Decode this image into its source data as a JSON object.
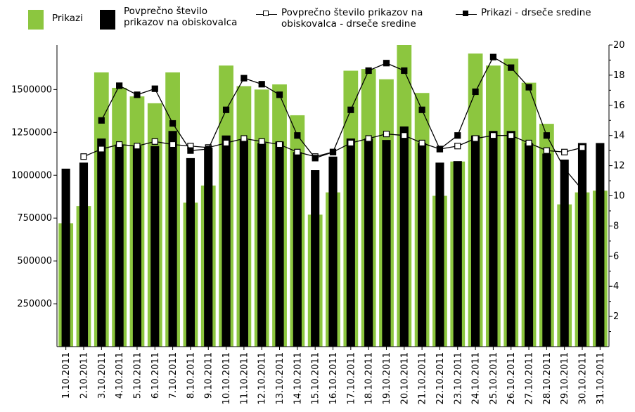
{
  "chart_data": {
    "type": "bar",
    "categories": [
      "1.10.2011",
      "2.10.2011",
      "3.10.2011",
      "4.10.2011",
      "5.10.2011",
      "6.10.2011",
      "7.10.2011",
      "8.10.2011",
      "9.10.2011",
      "10.10.2011",
      "11.10.2011",
      "12.10.2011",
      "13.10.2011",
      "14.10.2011",
      "15.10.2011",
      "16.10.2011",
      "17.10.2011",
      "18.10.2011",
      "19.10.2011",
      "20.10.2011",
      "21.10.2011",
      "22.10.2011",
      "23.10.2011",
      "24.10.2011",
      "25.10.2011",
      "26.10.2011",
      "27.10.2011",
      "28.10.2011",
      "29.10.2011",
      "30.10.2011",
      "31.10.2011"
    ],
    "series": [
      {
        "name": "Prikazi",
        "axis": "left",
        "kind": "bar",
        "color": "#8cc63f",
        "values": [
          720000,
          820000,
          1600000,
          1510000,
          1460000,
          1420000,
          1600000,
          840000,
          940000,
          1640000,
          1520000,
          1500000,
          1530000,
          1350000,
          770000,
          900000,
          1610000,
          1620000,
          1560000,
          1760000,
          1480000,
          880000,
          1080000,
          1710000,
          1640000,
          1680000,
          1540000,
          1300000,
          830000,
          900000,
          910000
        ]
      },
      {
        "name": "Povprečno število prikazov na obiskovalca",
        "axis": "right",
        "kind": "bar",
        "color": "#000000",
        "values": [
          11.8,
          12.2,
          13.8,
          13.4,
          13.3,
          13.3,
          14.3,
          12.5,
          13.2,
          14.0,
          13.7,
          13.5,
          13.6,
          12.9,
          11.7,
          12.6,
          13.8,
          13.8,
          13.7,
          14.6,
          13.5,
          12.2,
          12.3,
          14.0,
          14.3,
          14.3,
          13.5,
          12.8,
          12.4,
          13.5,
          13.5
        ]
      },
      {
        "name": "Povprečno število prikazov na obiskovalca - drseče sredine",
        "axis": "right",
        "kind": "line",
        "marker": "open-square",
        "values": [
          null,
          12.6,
          13.1,
          13.4,
          13.3,
          13.6,
          13.4,
          13.3,
          13.2,
          13.5,
          13.8,
          13.6,
          13.4,
          12.9,
          12.6,
          12.9,
          13.5,
          13.8,
          14.1,
          14.0,
          13.5,
          13.1,
          13.3,
          13.8,
          14.0,
          14.0,
          13.5,
          13.0,
          12.9,
          13.2,
          null
        ]
      },
      {
        "name": "Prikazi - drseče sredine",
        "axis": "right",
        "kind": "line",
        "marker": "filled-square",
        "values": [
          null,
          null,
          15.0,
          17.3,
          16.7,
          17.1,
          14.8,
          13.0,
          13.1,
          15.7,
          17.8,
          17.4,
          16.7,
          14.0,
          12.5,
          12.9,
          15.7,
          18.3,
          18.8,
          18.3,
          15.7,
          13.1,
          14.0,
          16.9,
          19.2,
          18.5,
          17.2,
          14.0,
          11.8,
          10.4,
          null
        ]
      }
    ],
    "y_left": {
      "ylim": [
        0,
        1760000
      ],
      "ticks": [
        250000,
        500000,
        750000,
        1000000,
        1250000,
        1500000
      ]
    },
    "y_right": {
      "ylim": [
        0,
        20
      ],
      "ticks": [
        2,
        4,
        6,
        8,
        10,
        12,
        14,
        16,
        18,
        20
      ]
    },
    "grid": false,
    "legend_placement": "top"
  }
}
